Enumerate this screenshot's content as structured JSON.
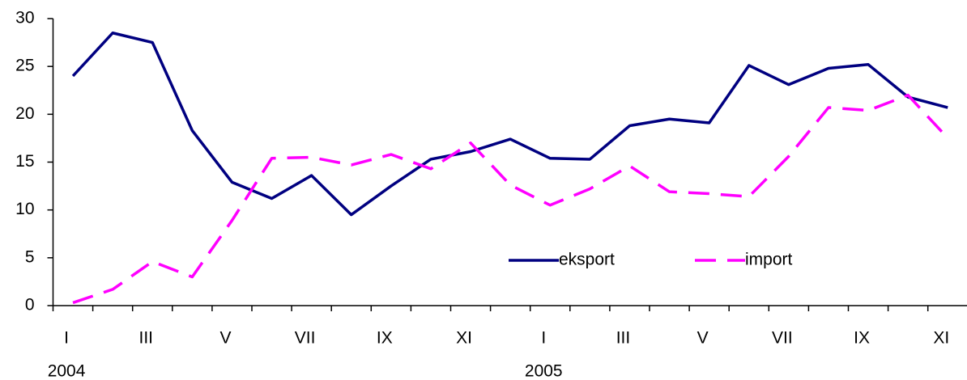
{
  "chart_data": {
    "type": "line",
    "categories": [
      "I",
      null,
      "III",
      null,
      "V",
      null,
      "VII",
      null,
      "IX",
      null,
      "XI",
      null,
      "I",
      null,
      "III",
      null,
      "V",
      null,
      "VII",
      null,
      "IX",
      null,
      "XI"
    ],
    "years": [
      "2004",
      "2005"
    ],
    "series": [
      {
        "name": "eksport",
        "color": "#000080",
        "dash": false,
        "values": [
          24.0,
          28.5,
          27.5,
          18.3,
          12.9,
          11.2,
          13.6,
          9.5,
          12.5,
          15.3,
          16.1,
          17.4,
          15.4,
          15.3,
          18.8,
          19.5,
          19.1,
          25.1,
          23.1,
          24.8,
          25.2,
          21.8,
          20.7
        ]
      },
      {
        "name": "import",
        "color": "#ff00ff",
        "dash": true,
        "values": [
          0.3,
          1.7,
          4.6,
          3.0,
          8.9,
          15.4,
          15.5,
          14.7,
          15.8,
          14.3,
          17.0,
          12.6,
          10.5,
          12.2,
          14.6,
          11.9,
          11.7,
          11.4,
          15.6,
          20.7,
          20.4,
          22.0,
          17.5
        ]
      }
    ],
    "ylim": [
      0,
      30
    ],
    "yticks": [
      0,
      5,
      10,
      15,
      20,
      25,
      30
    ]
  }
}
